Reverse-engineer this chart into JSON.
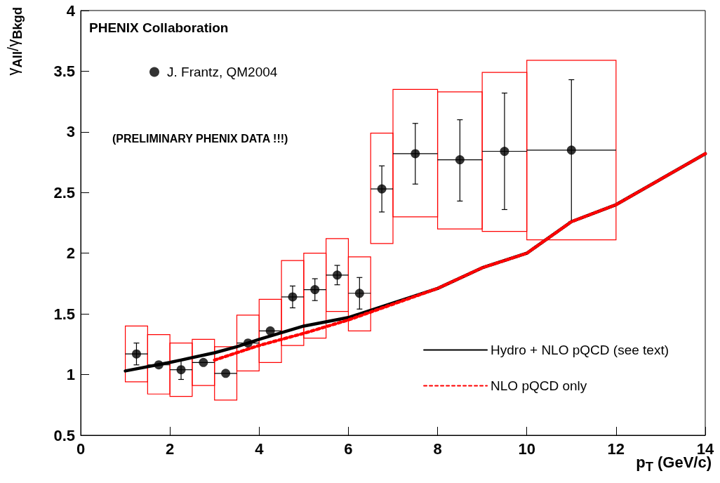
{
  "chart_data": {
    "type": "scatter",
    "xlabel": "p$_{T}$ (GeV/c)",
    "ylabel": "γ$_{All}$/γ$_{Bkgd}$",
    "annotations": [
      "PHENIX Collaboration",
      "(PRELIMINARY PHENIX DATA !!!)"
    ],
    "xlim": [
      0,
      14
    ],
    "xticks": [
      0,
      2,
      4,
      6,
      8,
      10,
      12,
      14
    ],
    "ylim": [
      0.5,
      4
    ],
    "yticks": [
      0.5,
      1,
      1.5,
      2,
      2.5,
      3,
      3.5,
      4
    ],
    "legend": "bottom right",
    "marker": "circle",
    "series": [
      {
        "name": "J. Frantz, QM2004",
        "color": "#000000",
        "x": [
          1.25,
          1.75,
          2.25,
          2.75,
          3.25,
          3.75,
          4.25,
          4.75,
          5.25,
          5.75,
          6.25,
          6.75,
          7.5,
          8.5,
          9.5,
          11
        ],
        "values": [
          1.17,
          1.08,
          1.04,
          1.1,
          1.01,
          1.26,
          1.36,
          1.64,
          1.7,
          1.82,
          1.67,
          2.53,
          2.82,
          2.77,
          2.84,
          2.85
        ],
        "errors": [
          0.09,
          null,
          0.08,
          null,
          null,
          null,
          null,
          0.09,
          0.09,
          0.08,
          0.13,
          [
            2.34,
            2.72
          ],
          [
            2.57,
            3.07
          ],
          [
            2.43,
            3.1
          ],
          [
            2.36,
            3.32
          ],
          [
            2.26,
            3.43
          ]
        ],
        "xerrors": [
          0.25,
          0.25,
          0.25,
          0.25,
          0.25,
          0.25,
          0.25,
          0.25,
          0.25,
          0.25,
          0.25,
          0.25,
          0.5,
          0.5,
          0.5,
          1
        ]
      },
      {
        "type": "bar",
        "color": "#ff0000",
        "x": [
          1.25,
          1.75,
          2.25,
          2.75,
          3.25,
          3.75,
          4.25,
          4.75,
          5.25,
          5.75,
          6.25,
          6.75,
          7.5,
          8.5,
          9.5,
          11
        ],
        "base": [
          0.94,
          0.84,
          0.82,
          0.91,
          0.79,
          1.03,
          1.1,
          1.24,
          1.3,
          1.52,
          1.36,
          2.08,
          2.3,
          2.2,
          2.18,
          2.11
        ],
        "values": [
          0.46,
          0.49,
          0.44,
          0.38,
          0.44,
          0.46,
          0.52,
          0.7,
          0.7,
          0.6,
          0.61,
          0.91,
          1.05,
          1.13,
          1.31,
          1.48
        ]
      },
      {
        "name": "Hydro + NLO pQCD (see text)",
        "type": "line",
        "marker": "none",
        "color": "#000000",
        "line_style": "solid",
        "x": [
          1,
          2,
          3,
          3.5,
          4,
          5,
          6,
          7,
          8,
          9,
          10,
          11,
          12,
          13,
          14
        ],
        "values": [
          1.03,
          1.1,
          1.18,
          1.23,
          1.29,
          1.4,
          1.47,
          1.59,
          1.71,
          1.88,
          2.0,
          2.26,
          2.4,
          2.61,
          2.82
        ]
      },
      {
        "name": "NLO pQCD only",
        "type": "line",
        "marker": "none",
        "color": "#ff0000",
        "line_style": "dotted",
        "x": [
          3,
          4,
          5,
          6,
          7,
          8,
          9,
          10,
          11,
          12,
          13,
          14
        ],
        "values": [
          1.12,
          1.24,
          1.34,
          1.45,
          1.58,
          1.71,
          1.88,
          2.0,
          2.26,
          2.4,
          2.61,
          2.82
        ]
      }
    ]
  }
}
